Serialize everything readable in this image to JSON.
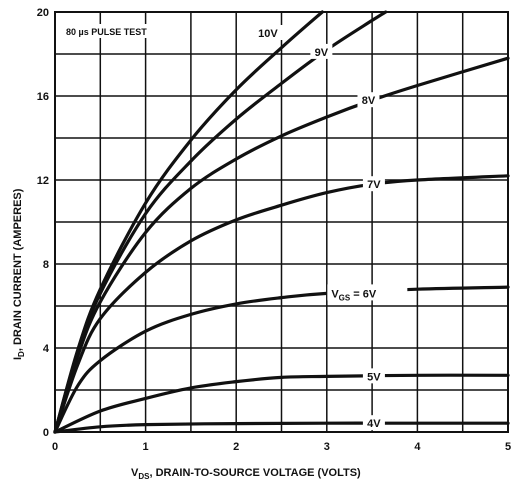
{
  "chart_data": {
    "type": "line",
    "title": "",
    "annotation": "80 µs PULSE TEST",
    "xlabel": {
      "main": "V",
      "sub": "DS",
      "rest": ", DRAIN-TO-SOURCE VOLTAGE (VOLTS)"
    },
    "ylabel": {
      "main": "I",
      "sub": "D",
      "rest": ", DRAIN CURRENT (AMPERES)"
    },
    "xlim": [
      0,
      5
    ],
    "ylim": [
      0,
      20
    ],
    "x_ticks": [
      0,
      1,
      2,
      3,
      4,
      5
    ],
    "y_ticks": [
      0,
      4,
      8,
      12,
      16,
      20
    ],
    "grid": true,
    "series": [
      {
        "name": "4V",
        "label": "4V",
        "x": [
          0,
          0.5,
          1,
          2,
          3,
          4,
          5
        ],
        "y": [
          0,
          0.25,
          0.35,
          0.4,
          0.42,
          0.42,
          0.42
        ]
      },
      {
        "name": "5V",
        "label": "5V",
        "x": [
          0,
          0.5,
          1,
          1.5,
          2,
          2.5,
          3,
          4,
          5
        ],
        "y": [
          0,
          1.0,
          1.6,
          2.1,
          2.4,
          2.6,
          2.65,
          2.7,
          2.7
        ]
      },
      {
        "name": "6V",
        "label": "V_GS = 6V",
        "label_main": "V",
        "label_sub": "GS",
        "label_rest": " = 6V",
        "x": [
          0,
          0.25,
          0.5,
          1,
          1.5,
          2,
          2.5,
          3,
          4,
          5
        ],
        "y": [
          0,
          2.2,
          3.4,
          4.8,
          5.6,
          6.1,
          6.4,
          6.6,
          6.8,
          6.9
        ]
      },
      {
        "name": "7V",
        "label": "7V",
        "x": [
          0,
          0.25,
          0.5,
          1,
          1.5,
          2,
          2.5,
          3,
          3.5,
          4,
          5
        ],
        "y": [
          0,
          3.2,
          5.4,
          7.6,
          9.1,
          10.1,
          10.8,
          11.4,
          11.8,
          12.0,
          12.2
        ]
      },
      {
        "name": "8V",
        "label": "8V",
        "x": [
          0,
          0.25,
          0.5,
          1,
          1.5,
          2,
          2.5,
          3,
          3.5,
          4,
          5
        ],
        "y": [
          0,
          3.6,
          6.2,
          9.5,
          11.6,
          13.0,
          14.1,
          15.0,
          15.8,
          16.5,
          17.8
        ]
      },
      {
        "name": "9V",
        "label": "9V",
        "x": [
          0,
          0.25,
          0.5,
          1,
          1.5,
          2,
          2.5,
          3,
          3.5,
          3.65
        ],
        "y": [
          0,
          3.8,
          6.6,
          10.4,
          12.9,
          14.9,
          16.6,
          18.2,
          19.6,
          20.0
        ]
      },
      {
        "name": "10V",
        "label": "10V",
        "x": [
          0,
          0.25,
          0.5,
          1,
          1.5,
          2,
          2.5,
          2.95
        ],
        "y": [
          0,
          3.9,
          6.8,
          10.9,
          13.9,
          16.3,
          18.3,
          20.0
        ]
      }
    ]
  }
}
